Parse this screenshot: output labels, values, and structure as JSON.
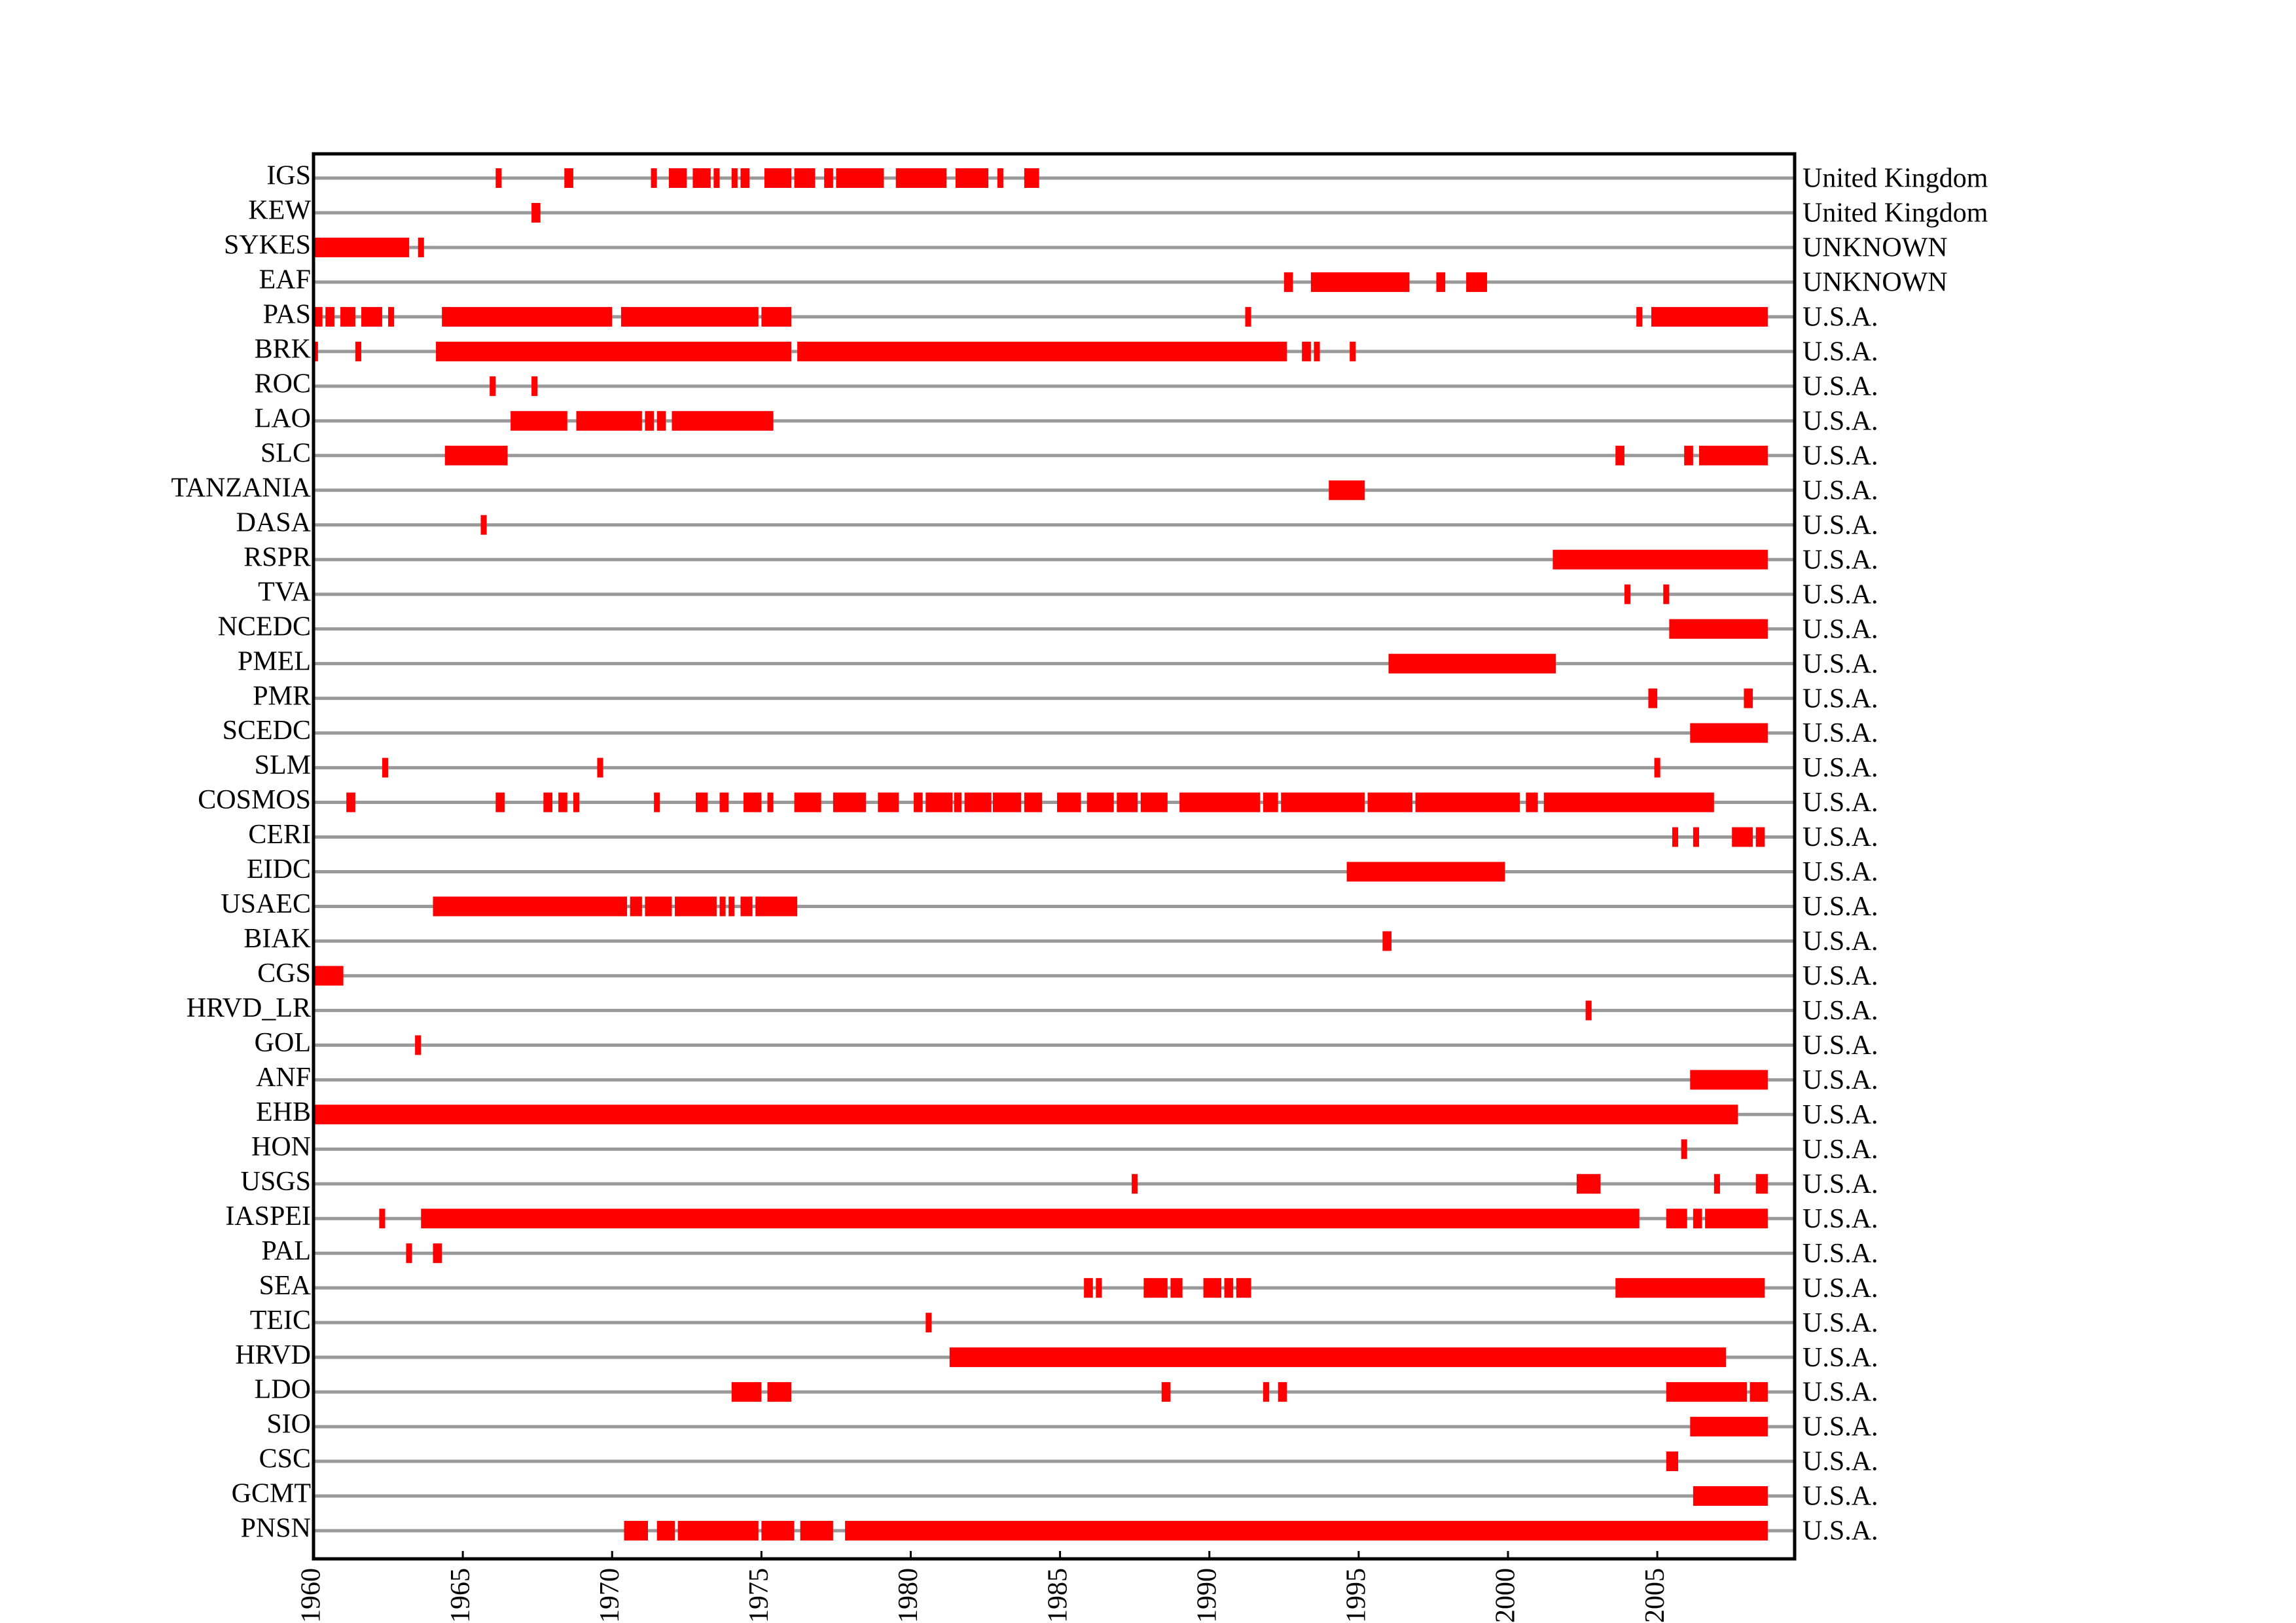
{
  "chart_data": {
    "type": "timeline",
    "color": "#ff0000",
    "xlim": [
      1960,
      2009.6
    ],
    "xticks": [
      1960,
      1965,
      1970,
      1975,
      1980,
      1985,
      1990,
      1995,
      2000,
      2005
    ],
    "rows": [
      {
        "name": "IGS",
        "country": "United Kingdom",
        "segments": [
          [
            1966.1,
            1966.3
          ],
          [
            1968.4,
            1968.7
          ],
          [
            1971.3,
            1971.5
          ],
          [
            1971.9,
            1972.5
          ],
          [
            1972.7,
            1973.3
          ],
          [
            1973.4,
            1973.6
          ],
          [
            1974.0,
            1974.2
          ],
          [
            1974.3,
            1974.6
          ],
          [
            1975.1,
            1976.0
          ],
          [
            1976.1,
            1976.8
          ],
          [
            1977.1,
            1977.4
          ],
          [
            1977.5,
            1979.1
          ],
          [
            1979.5,
            1981.2
          ],
          [
            1981.5,
            1982.6
          ],
          [
            1982.9,
            1983.1
          ],
          [
            1983.8,
            1984.3
          ]
        ]
      },
      {
        "name": "KEW",
        "country": "United Kingdom",
        "segments": [
          [
            1967.3,
            1967.6
          ]
        ]
      },
      {
        "name": "SYKES",
        "country": "UNKNOWN",
        "segments": [
          [
            1960,
            1963.2
          ],
          [
            1963.5,
            1963.7
          ]
        ]
      },
      {
        "name": "EAF",
        "country": "UNKNOWN",
        "segments": [
          [
            1992.5,
            1992.8
          ],
          [
            1993.4,
            1996.7
          ],
          [
            1997.6,
            1997.9
          ],
          [
            1998.6,
            1999.3
          ]
        ]
      },
      {
        "name": "PAS",
        "country": "U.S.A.",
        "segments": [
          [
            1960.05,
            1960.3
          ],
          [
            1960.4,
            1960.7
          ],
          [
            1960.9,
            1961.4
          ],
          [
            1961.6,
            1962.3
          ],
          [
            1962.5,
            1962.7
          ],
          [
            1964.3,
            1970.0
          ],
          [
            1970.3,
            1974.9
          ],
          [
            1975.0,
            1976.0
          ],
          [
            1991.2,
            1991.4
          ],
          [
            2004.3,
            2004.5
          ],
          [
            2004.8,
            2008.7
          ]
        ]
      },
      {
        "name": "BRK",
        "country": "U.S.A.",
        "segments": [
          [
            1960,
            1960.15
          ],
          [
            1961.4,
            1961.6
          ],
          [
            1964.1,
            1976.0
          ],
          [
            1976.2,
            1992.6
          ],
          [
            1993.1,
            1993.4
          ],
          [
            1993.5,
            1993.7
          ],
          [
            1994.7,
            1994.9
          ]
        ]
      },
      {
        "name": "ROC",
        "country": "U.S.A.",
        "segments": [
          [
            1965.9,
            1966.1
          ],
          [
            1967.3,
            1967.5
          ]
        ]
      },
      {
        "name": "LAO",
        "country": "U.S.A.",
        "segments": [
          [
            1966.6,
            1968.5
          ],
          [
            1968.8,
            1971.0
          ],
          [
            1971.1,
            1971.4
          ],
          [
            1971.5,
            1971.8
          ],
          [
            1972.0,
            1975.4
          ]
        ]
      },
      {
        "name": "SLC",
        "country": "U.S.A.",
        "segments": [
          [
            1964.4,
            1966.5
          ],
          [
            2003.6,
            2003.9
          ],
          [
            2005.9,
            2006.2
          ],
          [
            2006.4,
            2008.7
          ]
        ]
      },
      {
        "name": "TANZANIA",
        "country": "U.S.A.",
        "segments": [
          [
            1994.0,
            1995.2
          ]
        ]
      },
      {
        "name": "DASA",
        "country": "U.S.A.",
        "segments": [
          [
            1965.6,
            1965.8
          ]
        ]
      },
      {
        "name": "RSPR",
        "country": "U.S.A.",
        "segments": [
          [
            2001.5,
            2008.7
          ]
        ]
      },
      {
        "name": "TVA",
        "country": "U.S.A.",
        "segments": [
          [
            2003.9,
            2004.1
          ],
          [
            2005.2,
            2005.4
          ]
        ]
      },
      {
        "name": "NCEDC",
        "country": "U.S.A.",
        "segments": [
          [
            2005.4,
            2008.7
          ]
        ]
      },
      {
        "name": "PMEL",
        "country": "U.S.A.",
        "segments": [
          [
            1996.0,
            2001.6
          ]
        ]
      },
      {
        "name": "PMR",
        "country": "U.S.A.",
        "segments": [
          [
            2004.7,
            2005.0
          ],
          [
            2007.9,
            2008.2
          ]
        ]
      },
      {
        "name": "SCEDC",
        "country": "U.S.A.",
        "segments": [
          [
            2006.1,
            2008.7
          ]
        ]
      },
      {
        "name": "SLM",
        "country": "U.S.A.",
        "segments": [
          [
            1962.3,
            1962.5
          ],
          [
            1969.5,
            1969.7
          ],
          [
            2004.9,
            2005.1
          ]
        ]
      },
      {
        "name": "COSMOS",
        "country": "U.S.A.",
        "segments": [
          [
            1961.1,
            1961.4
          ],
          [
            1966.1,
            1966.4
          ],
          [
            1967.7,
            1968.0
          ],
          [
            1968.2,
            1968.5
          ],
          [
            1968.7,
            1968.9
          ],
          [
            1971.4,
            1971.6
          ],
          [
            1972.8,
            1973.2
          ],
          [
            1973.6,
            1973.9
          ],
          [
            1974.4,
            1975.0
          ],
          [
            1975.2,
            1975.4
          ],
          [
            1976.1,
            1977.0
          ],
          [
            1977.4,
            1978.5
          ],
          [
            1978.9,
            1979.6
          ],
          [
            1980.1,
            1980.4
          ],
          [
            1980.5,
            1981.4
          ],
          [
            1981.45,
            1981.7
          ],
          [
            1981.8,
            1982.7
          ],
          [
            1982.75,
            1983.7
          ],
          [
            1983.8,
            1984.4
          ],
          [
            1984.9,
            1985.7
          ],
          [
            1985.9,
            1986.8
          ],
          [
            1986.9,
            1987.6
          ],
          [
            1987.7,
            1988.6
          ],
          [
            1989.0,
            1991.7
          ],
          [
            1991.8,
            1992.3
          ],
          [
            1992.4,
            1995.2
          ],
          [
            1995.3,
            1996.8
          ],
          [
            1996.9,
            2000.4
          ],
          [
            2000.6,
            2001.0
          ],
          [
            2001.2,
            2006.9
          ]
        ]
      },
      {
        "name": "CERI",
        "country": "U.S.A.",
        "segments": [
          [
            2005.5,
            2005.7
          ],
          [
            2006.2,
            2006.4
          ],
          [
            2007.5,
            2008.2
          ],
          [
            2008.3,
            2008.6
          ]
        ]
      },
      {
        "name": "EIDC",
        "country": "U.S.A.",
        "segments": [
          [
            1994.6,
            1999.9
          ]
        ]
      },
      {
        "name": "USAEC",
        "country": "U.S.A.",
        "segments": [
          [
            1964.0,
            1970.5
          ],
          [
            1970.6,
            1971.0
          ],
          [
            1971.1,
            1972.0
          ],
          [
            1972.1,
            1973.5
          ],
          [
            1973.6,
            1973.8
          ],
          [
            1973.9,
            1974.1
          ],
          [
            1974.3,
            1974.7
          ],
          [
            1974.8,
            1976.2
          ]
        ]
      },
      {
        "name": "BIAK",
        "country": "U.S.A.",
        "segments": [
          [
            1995.8,
            1996.1
          ]
        ]
      },
      {
        "name": "CGS",
        "country": "U.S.A.",
        "segments": [
          [
            1960,
            1961.0
          ]
        ]
      },
      {
        "name": "HRVD_LR",
        "country": "U.S.A.",
        "segments": [
          [
            2002.6,
            2002.8
          ]
        ]
      },
      {
        "name": "GOL",
        "country": "U.S.A.",
        "segments": [
          [
            1963.4,
            1963.6
          ]
        ]
      },
      {
        "name": "ANF",
        "country": "U.S.A.",
        "segments": [
          [
            2006.1,
            2008.7
          ]
        ]
      },
      {
        "name": "EHB",
        "country": "U.S.A.",
        "segments": [
          [
            1960,
            2007.7
          ]
        ]
      },
      {
        "name": "HON",
        "country": "U.S.A.",
        "segments": [
          [
            2005.8,
            2006.0
          ]
        ]
      },
      {
        "name": "USGS",
        "country": "U.S.A.",
        "segments": [
          [
            1987.4,
            1987.6
          ],
          [
            2002.3,
            2003.1
          ],
          [
            2006.9,
            2007.1
          ],
          [
            2008.3,
            2008.7
          ]
        ]
      },
      {
        "name": "IASPEI",
        "country": "U.S.A.",
        "segments": [
          [
            1962.2,
            1962.4
          ],
          [
            1963.6,
            2004.4
          ],
          [
            2005.3,
            2006.0
          ],
          [
            2006.2,
            2006.5
          ],
          [
            2006.6,
            2008.7
          ]
        ]
      },
      {
        "name": "PAL",
        "country": "U.S.A.",
        "segments": [
          [
            1963.1,
            1963.3
          ],
          [
            1964.0,
            1964.3
          ]
        ]
      },
      {
        "name": "SEA",
        "country": "U.S.A.",
        "segments": [
          [
            1985.8,
            1986.1
          ],
          [
            1986.2,
            1986.4
          ],
          [
            1987.8,
            1988.6
          ],
          [
            1988.7,
            1989.1
          ],
          [
            1989.8,
            1990.4
          ],
          [
            1990.5,
            1990.8
          ],
          [
            1990.9,
            1991.4
          ],
          [
            2003.6,
            2008.6
          ]
        ]
      },
      {
        "name": "TEIC",
        "country": "U.S.A.",
        "segments": [
          [
            1980.5,
            1980.7
          ]
        ]
      },
      {
        "name": "HRVD",
        "country": "U.S.A.",
        "segments": [
          [
            1981.3,
            2007.3
          ]
        ]
      },
      {
        "name": "LDO",
        "country": "U.S.A.",
        "segments": [
          [
            1974.0,
            1975.0
          ],
          [
            1975.2,
            1976.0
          ],
          [
            1988.4,
            1988.7
          ],
          [
            1991.8,
            1992.0
          ],
          [
            1992.3,
            1992.6
          ],
          [
            2005.3,
            2008.0
          ],
          [
            2008.1,
            2008.7
          ]
        ]
      },
      {
        "name": "SIO",
        "country": "U.S.A.",
        "segments": [
          [
            2006.1,
            2008.7
          ]
        ]
      },
      {
        "name": "CSC",
        "country": "U.S.A.",
        "segments": [
          [
            2005.3,
            2005.7
          ]
        ]
      },
      {
        "name": "GCMT",
        "country": "U.S.A.",
        "segments": [
          [
            2006.2,
            2008.7
          ]
        ]
      },
      {
        "name": "PNSN",
        "country": "U.S.A.",
        "segments": [
          [
            1970.4,
            1971.2
          ],
          [
            1971.5,
            1972.1
          ],
          [
            1972.2,
            1974.9
          ],
          [
            1975.0,
            1976.1
          ],
          [
            1976.3,
            1977.4
          ],
          [
            1977.8,
            2008.7
          ]
        ]
      }
    ]
  }
}
